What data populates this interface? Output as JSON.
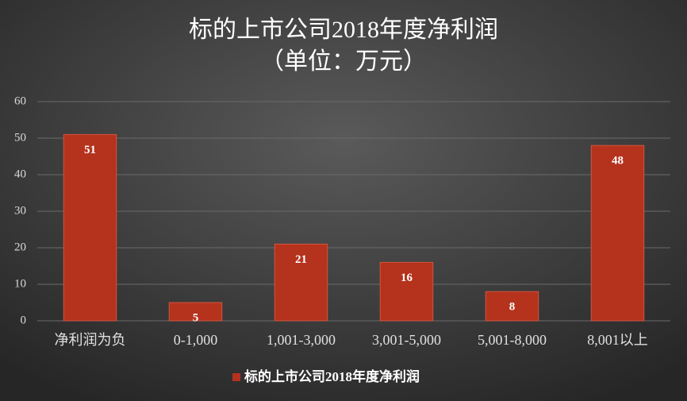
{
  "chart_data": {
    "type": "bar",
    "title": "标的上市公司2018年度净利润",
    "subtitle": "（单位：万元）",
    "categories": [
      "净利润为负",
      "0-1,000",
      "1,001-3,000",
      "3,001-5,000",
      "5,001-8,000",
      "8,001以上"
    ],
    "series": [
      {
        "name": "标的上市公司2018年度净利润",
        "color": "#b5321d",
        "values": [
          51,
          5,
          21,
          16,
          8,
          48
        ]
      }
    ],
    "ylim": [
      0,
      60
    ],
    "yticks": [
      0,
      10,
      20,
      30,
      40,
      50,
      60
    ],
    "grid": true,
    "legend": "bottom"
  }
}
